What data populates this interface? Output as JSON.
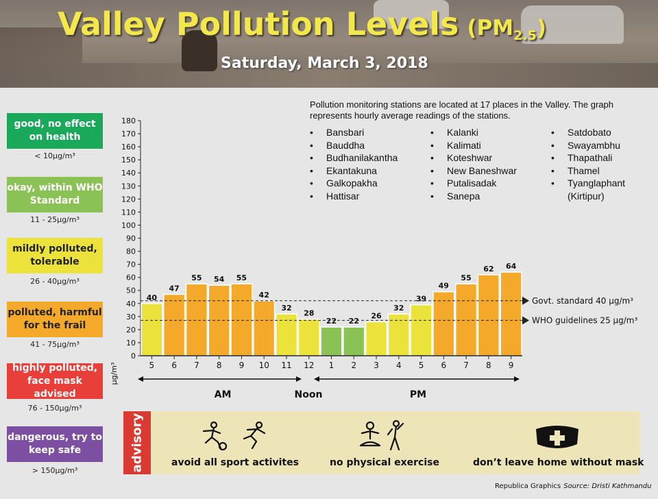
{
  "header": {
    "title_main": "Valley Pollution Levels",
    "title_pm": "(PM",
    "title_sub": "2.5",
    "title_close": ")",
    "date": "Saturday, March 3, 2018"
  },
  "legend": [
    {
      "label": "good, no effect on health",
      "range": "< 10µg/m³",
      "color": "#1aa85a"
    },
    {
      "label": "okay, within WHO Standard",
      "range": "11 - 25µg/m³",
      "color": "#8ac255"
    },
    {
      "label": "mildly polluted, tolerable",
      "range": "26 - 40µg/m³",
      "color": "#ece23c"
    },
    {
      "label": "polluted, harmful for the frail",
      "range": "41 - 75µg/m³",
      "color": "#f5a92a"
    },
    {
      "label": "highly polluted, face mask advised",
      "range": "76 - 150µg/m³",
      "color": "#e83f3b"
    },
    {
      "label": "dangerous, try to keep safe",
      "range": "> 150µg/m³",
      "color": "#7d4fa3"
    }
  ],
  "stations": {
    "intro": "Pollution monitoring stations are located at 17 places in the Valley. The graph represents hourly average readings of the stations.",
    "columns": [
      [
        "Bansbari",
        "Bauddha",
        "Budhanilakantha",
        "Ekantakuna",
        "Galkopakha",
        "Hattisar"
      ],
      [
        "Kalanki",
        "Kalimati",
        "Koteshwar",
        "New Baneshwar",
        "Putalisadak",
        "Sanepa"
      ],
      [
        "Satdobato",
        "Swayambhu",
        "Thapathali",
        "Thamel",
        "Tyanglaphant",
        "(Kirtipur)"
      ]
    ]
  },
  "chart_data": {
    "type": "bar",
    "categories": [
      "5",
      "6",
      "7",
      "8",
      "9",
      "10",
      "11",
      "12",
      "1",
      "2",
      "3",
      "4",
      "5",
      "6",
      "7",
      "8",
      "9"
    ],
    "values": [
      40,
      47,
      55,
      54,
      55,
      42,
      32,
      28,
      22,
      22,
      26,
      32,
      39,
      49,
      55,
      62,
      64
    ],
    "ylabel": "µg/m³",
    "ylim": [
      0,
      180
    ],
    "ytick_step": 10,
    "reference_lines": [
      {
        "label": "Govt. standard 40 µg/m³",
        "value": 40
      },
      {
        "label": "WHO guidelines 25 µg/m³",
        "value": 25
      }
    ],
    "period_labels": {
      "am": "AM",
      "noon": "Noon",
      "pm": "PM"
    },
    "bands": [
      {
        "max": 10,
        "color": "#1aa85a"
      },
      {
        "max": 25,
        "color": "#8ac255"
      },
      {
        "max": 40,
        "color": "#ece23c"
      },
      {
        "max": 75,
        "color": "#f5a92a"
      },
      {
        "max": 150,
        "color": "#e83f3b"
      },
      {
        "max": 1000,
        "color": "#7d4fa3"
      }
    ]
  },
  "advisory": {
    "tab": "advisory",
    "items": [
      {
        "label": "avoid all sport activites",
        "icon": "sports-icon"
      },
      {
        "label": "no physical exercise",
        "icon": "exercise-icon"
      },
      {
        "label": "don’t leave home without mask",
        "icon": "mask-icon"
      }
    ]
  },
  "credit": {
    "graphics": "Republica Graphics",
    "source": "Source: Dristi Kathmandu"
  }
}
